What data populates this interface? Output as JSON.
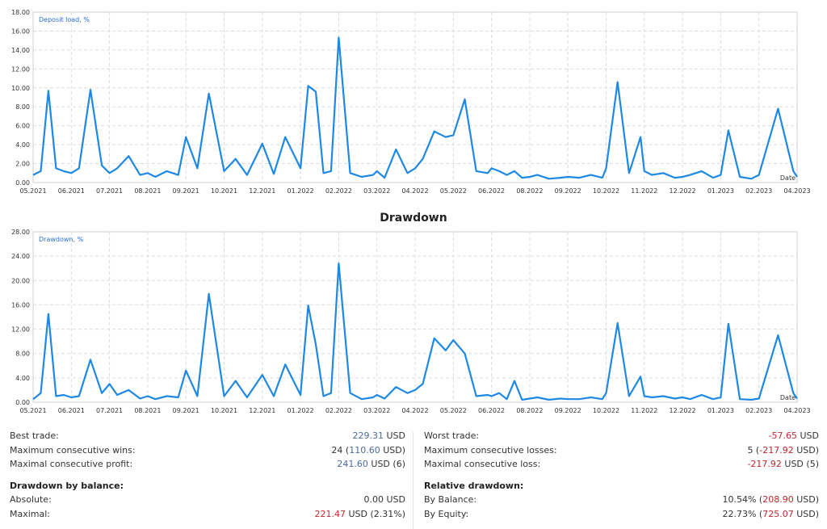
{
  "chart_data": [
    {
      "type": "line",
      "title": "",
      "series_label": "Deposit load, %",
      "xlabel": "Date",
      "ylim": [
        0,
        18
      ],
      "y_ticks": [
        "0.00",
        "2.00",
        "4.00",
        "6.00",
        "8.00",
        "10.00",
        "12.00",
        "14.00",
        "16.00",
        "18.00"
      ],
      "x_ticks": [
        "05.2021",
        "06.2021",
        "07.2021",
        "08.2021",
        "09.2021",
        "10.2021",
        "12.2021",
        "01.2022",
        "02.2022",
        "03.2022",
        "04.2022",
        "05.2022",
        "06.2022",
        "08.2022",
        "09.2022",
        "10.2022",
        "11.2022",
        "12.2022",
        "01.2023",
        "02.2023",
        "04.2023"
      ],
      "grid": true,
      "color": "#1e88e5",
      "series": [
        {
          "x": [
            0,
            0.2,
            0.4,
            0.6,
            0.8,
            1.0,
            1.2,
            1.5,
            1.8,
            2.0,
            2.2,
            2.5,
            2.8,
            3.0,
            3.2,
            3.5,
            3.8,
            4.0,
            4.3,
            4.6,
            5.0,
            5.3,
            5.6,
            6.0,
            6.3,
            6.6,
            7.0,
            7.2,
            7.4,
            7.6,
            7.8,
            8.0,
            8.3,
            8.6,
            8.9,
            9.0,
            9.2,
            9.5,
            9.8,
            10.0,
            10.2,
            10.5,
            10.8,
            11.0,
            11.3,
            11.6,
            11.9,
            12.0,
            12.2,
            12.4,
            12.6,
            12.8,
            13.0,
            13.2,
            13.5,
            13.8,
            14.0,
            14.3,
            14.6,
            14.9,
            15.0,
            15.3,
            15.6,
            15.9,
            16.0,
            16.2,
            16.5,
            16.8,
            17.0,
            17.2,
            17.5,
            17.8,
            18.0,
            18.2,
            18.5,
            18.8,
            19.0,
            19.5,
            19.9,
            20.0
          ],
          "y": [
            0.8,
            1.2,
            9.7,
            1.5,
            1.2,
            1.0,
            1.5,
            9.8,
            1.8,
            1.0,
            1.5,
            2.8,
            0.8,
            1.0,
            0.6,
            1.2,
            0.8,
            4.8,
            1.5,
            9.4,
            1.2,
            2.5,
            0.8,
            4.1,
            0.9,
            4.8,
            1.5,
            10.2,
            9.6,
            1.0,
            1.2,
            15.3,
            1.0,
            0.6,
            0.8,
            1.2,
            0.5,
            3.5,
            1.0,
            1.5,
            2.5,
            5.4,
            4.8,
            5.0,
            8.8,
            1.2,
            1.0,
            1.5,
            1.2,
            0.8,
            1.2,
            0.5,
            0.6,
            0.8,
            0.4,
            0.5,
            0.6,
            0.5,
            0.8,
            0.5,
            1.5,
            10.6,
            1.0,
            4.8,
            1.2,
            0.8,
            1.0,
            0.5,
            0.6,
            0.8,
            1.2,
            0.5,
            0.8,
            5.5,
            0.6,
            0.4,
            0.8,
            7.8,
            1.2,
            0.6
          ]
        }
      ]
    },
    {
      "type": "line",
      "title": "Drawdown",
      "series_label": "Drawdown, %",
      "xlabel": "Date",
      "ylim": [
        0,
        28
      ],
      "y_ticks": [
        "0.00",
        "4.00",
        "8.00",
        "12.00",
        "16.00",
        "20.00",
        "24.00",
        "28.00"
      ],
      "x_ticks": [
        "05.2021",
        "06.2021",
        "07.2021",
        "08.2021",
        "09.2021",
        "10.2021",
        "12.2021",
        "01.2022",
        "02.2022",
        "03.2022",
        "04.2022",
        "05.2022",
        "06.2022",
        "08.2022",
        "09.2022",
        "10.2022",
        "11.2022",
        "12.2022",
        "01.2023",
        "02.2023",
        "04.2023"
      ],
      "grid": true,
      "color": "#1e88e5",
      "series": [
        {
          "x": [
            0,
            0.2,
            0.4,
            0.6,
            0.8,
            1.0,
            1.2,
            1.5,
            1.8,
            2.0,
            2.2,
            2.5,
            2.8,
            3.0,
            3.2,
            3.5,
            3.8,
            4.0,
            4.3,
            4.6,
            5.0,
            5.3,
            5.6,
            6.0,
            6.3,
            6.6,
            7.0,
            7.2,
            7.4,
            7.6,
            7.8,
            8.0,
            8.3,
            8.6,
            8.9,
            9.0,
            9.2,
            9.5,
            9.8,
            10.0,
            10.2,
            10.5,
            10.8,
            11.0,
            11.3,
            11.6,
            11.9,
            12.0,
            12.2,
            12.4,
            12.6,
            12.8,
            13.0,
            13.2,
            13.5,
            13.8,
            14.0,
            14.3,
            14.6,
            14.9,
            15.0,
            15.3,
            15.6,
            15.9,
            16.0,
            16.2,
            16.5,
            16.8,
            17.0,
            17.2,
            17.5,
            17.8,
            18.0,
            18.2,
            18.5,
            18.8,
            19.0,
            19.5,
            19.9,
            20.0
          ],
          "y": [
            0.5,
            1.5,
            14.5,
            1.0,
            1.2,
            0.8,
            1.0,
            7.0,
            1.5,
            3.0,
            1.2,
            2.0,
            0.6,
            1.0,
            0.5,
            1.0,
            0.8,
            5.2,
            1.0,
            17.8,
            1.0,
            3.5,
            0.8,
            4.5,
            1.0,
            6.2,
            1.2,
            15.9,
            9.5,
            1.0,
            1.5,
            22.8,
            1.5,
            0.5,
            0.8,
            1.2,
            0.6,
            2.5,
            1.5,
            2.0,
            3.0,
            10.5,
            8.5,
            10.2,
            8.0,
            1.0,
            1.2,
            1.0,
            1.5,
            0.5,
            3.5,
            0.4,
            0.6,
            0.8,
            0.4,
            0.6,
            0.5,
            0.5,
            0.8,
            0.5,
            1.5,
            13.0,
            1.0,
            4.2,
            1.0,
            0.8,
            1.0,
            0.6,
            0.8,
            0.5,
            1.2,
            0.5,
            0.8,
            12.9,
            0.5,
            0.4,
            0.6,
            11.0,
            1.5,
            0.6
          ]
        }
      ]
    }
  ],
  "stats": {
    "left": {
      "best_trade": {
        "label": "Best trade:",
        "v1": "229.31",
        "v2": " USD"
      },
      "max_consec_wins": {
        "label": "Maximum consecutive wins:",
        "pre": "24 (",
        "v1": "110.60",
        "post": " USD)"
      },
      "max_consec_profit": {
        "label": "Maximal consecutive profit:",
        "v1": "241.60",
        "post": " USD (6)"
      },
      "dd_title": "Drawdown by balance:",
      "absolute": {
        "label": "Absolute:",
        "v": "0.00 USD"
      },
      "maximal": {
        "label": "Maximal:",
        "v1": "221.47",
        "post": " USD (2.31%)"
      }
    },
    "right": {
      "worst_trade": {
        "label": "Worst trade:",
        "v1": "-57.65",
        "v2": " USD"
      },
      "max_consec_losses": {
        "label": "Maximum consecutive losses:",
        "pre": "5 (",
        "v1": "-217.92",
        "post": " USD)"
      },
      "max_consec_loss": {
        "label": "Maximal consecutive loss:",
        "v1": "-217.92",
        "post": " USD (5)"
      },
      "rel_title": "Relative drawdown:",
      "by_balance": {
        "label": "By Balance:",
        "pre": "10.54% (",
        "v1": "208.90",
        "post": " USD)"
      },
      "by_equity": {
        "label": "By Equity:",
        "pre": "22.73% (",
        "v1": "725.07",
        "post": " USD)"
      }
    }
  }
}
